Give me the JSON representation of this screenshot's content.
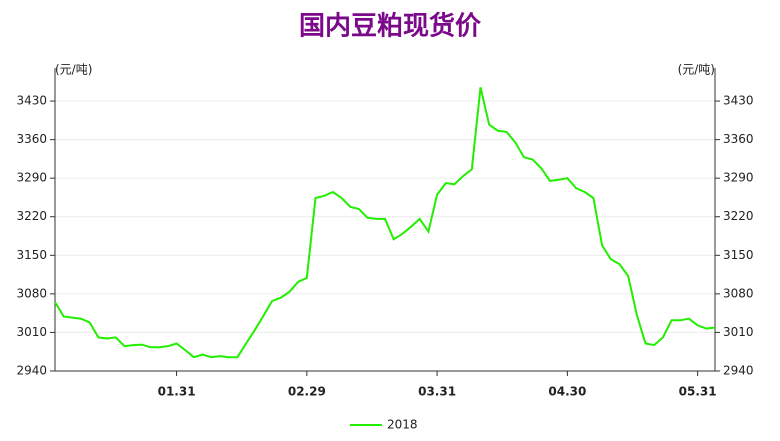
{
  "chart_data": {
    "type": "line",
    "title": "国内豆粕现货价",
    "y_unit": "(元/吨)",
    "categories": [
      null,
      null,
      null,
      null,
      null,
      null,
      null,
      null,
      null,
      null,
      null,
      null,
      null,
      null,
      "01.31",
      null,
      null,
      null,
      null,
      null,
      null,
      null,
      null,
      null,
      null,
      null,
      null,
      null,
      null,
      "02.29",
      null,
      null,
      null,
      null,
      null,
      null,
      null,
      null,
      null,
      null,
      null,
      null,
      null,
      null,
      "03.31",
      null,
      null,
      null,
      null,
      null,
      null,
      null,
      null,
      null,
      null,
      null,
      null,
      null,
      null,
      "04.30",
      null,
      null,
      null,
      null,
      null,
      null,
      null,
      null,
      null,
      null,
      null,
      null,
      null,
      null,
      "05.31",
      null,
      null
    ],
    "series": [
      {
        "name": "2018",
        "color": "#22ee00",
        "values": [
          3065,
          3039,
          3037,
          3035,
          3028,
          3001,
          2999,
          3001,
          2985,
          2987,
          2988,
          2983,
          2983,
          2985,
          2990,
          2978,
          2965,
          2970,
          2965,
          2967,
          2965,
          2965,
          2990,
          3014,
          3040,
          3067,
          3073,
          3084,
          3102,
          3109,
          3254,
          3258,
          3265,
          3254,
          3238,
          3234,
          3218,
          3216,
          3216,
          3179,
          3189,
          3202,
          3216,
          3193,
          3260,
          3281,
          3279,
          3294,
          3306,
          3455,
          3387,
          3376,
          3374,
          3355,
          3328,
          3324,
          3308,
          3285,
          3287,
          3290,
          3272,
          3265,
          3254,
          3168,
          3143,
          3134,
          3112,
          3042,
          2990,
          2987,
          3001,
          3032,
          3032,
          3035,
          3023,
          3017,
          3019
        ]
      }
    ],
    "ylim": [
      2940,
      3490
    ],
    "yticks": [
      2940,
      3010,
      3080,
      3150,
      3220,
      3290,
      3360,
      3430
    ],
    "grid": true,
    "legend": "bottom"
  }
}
